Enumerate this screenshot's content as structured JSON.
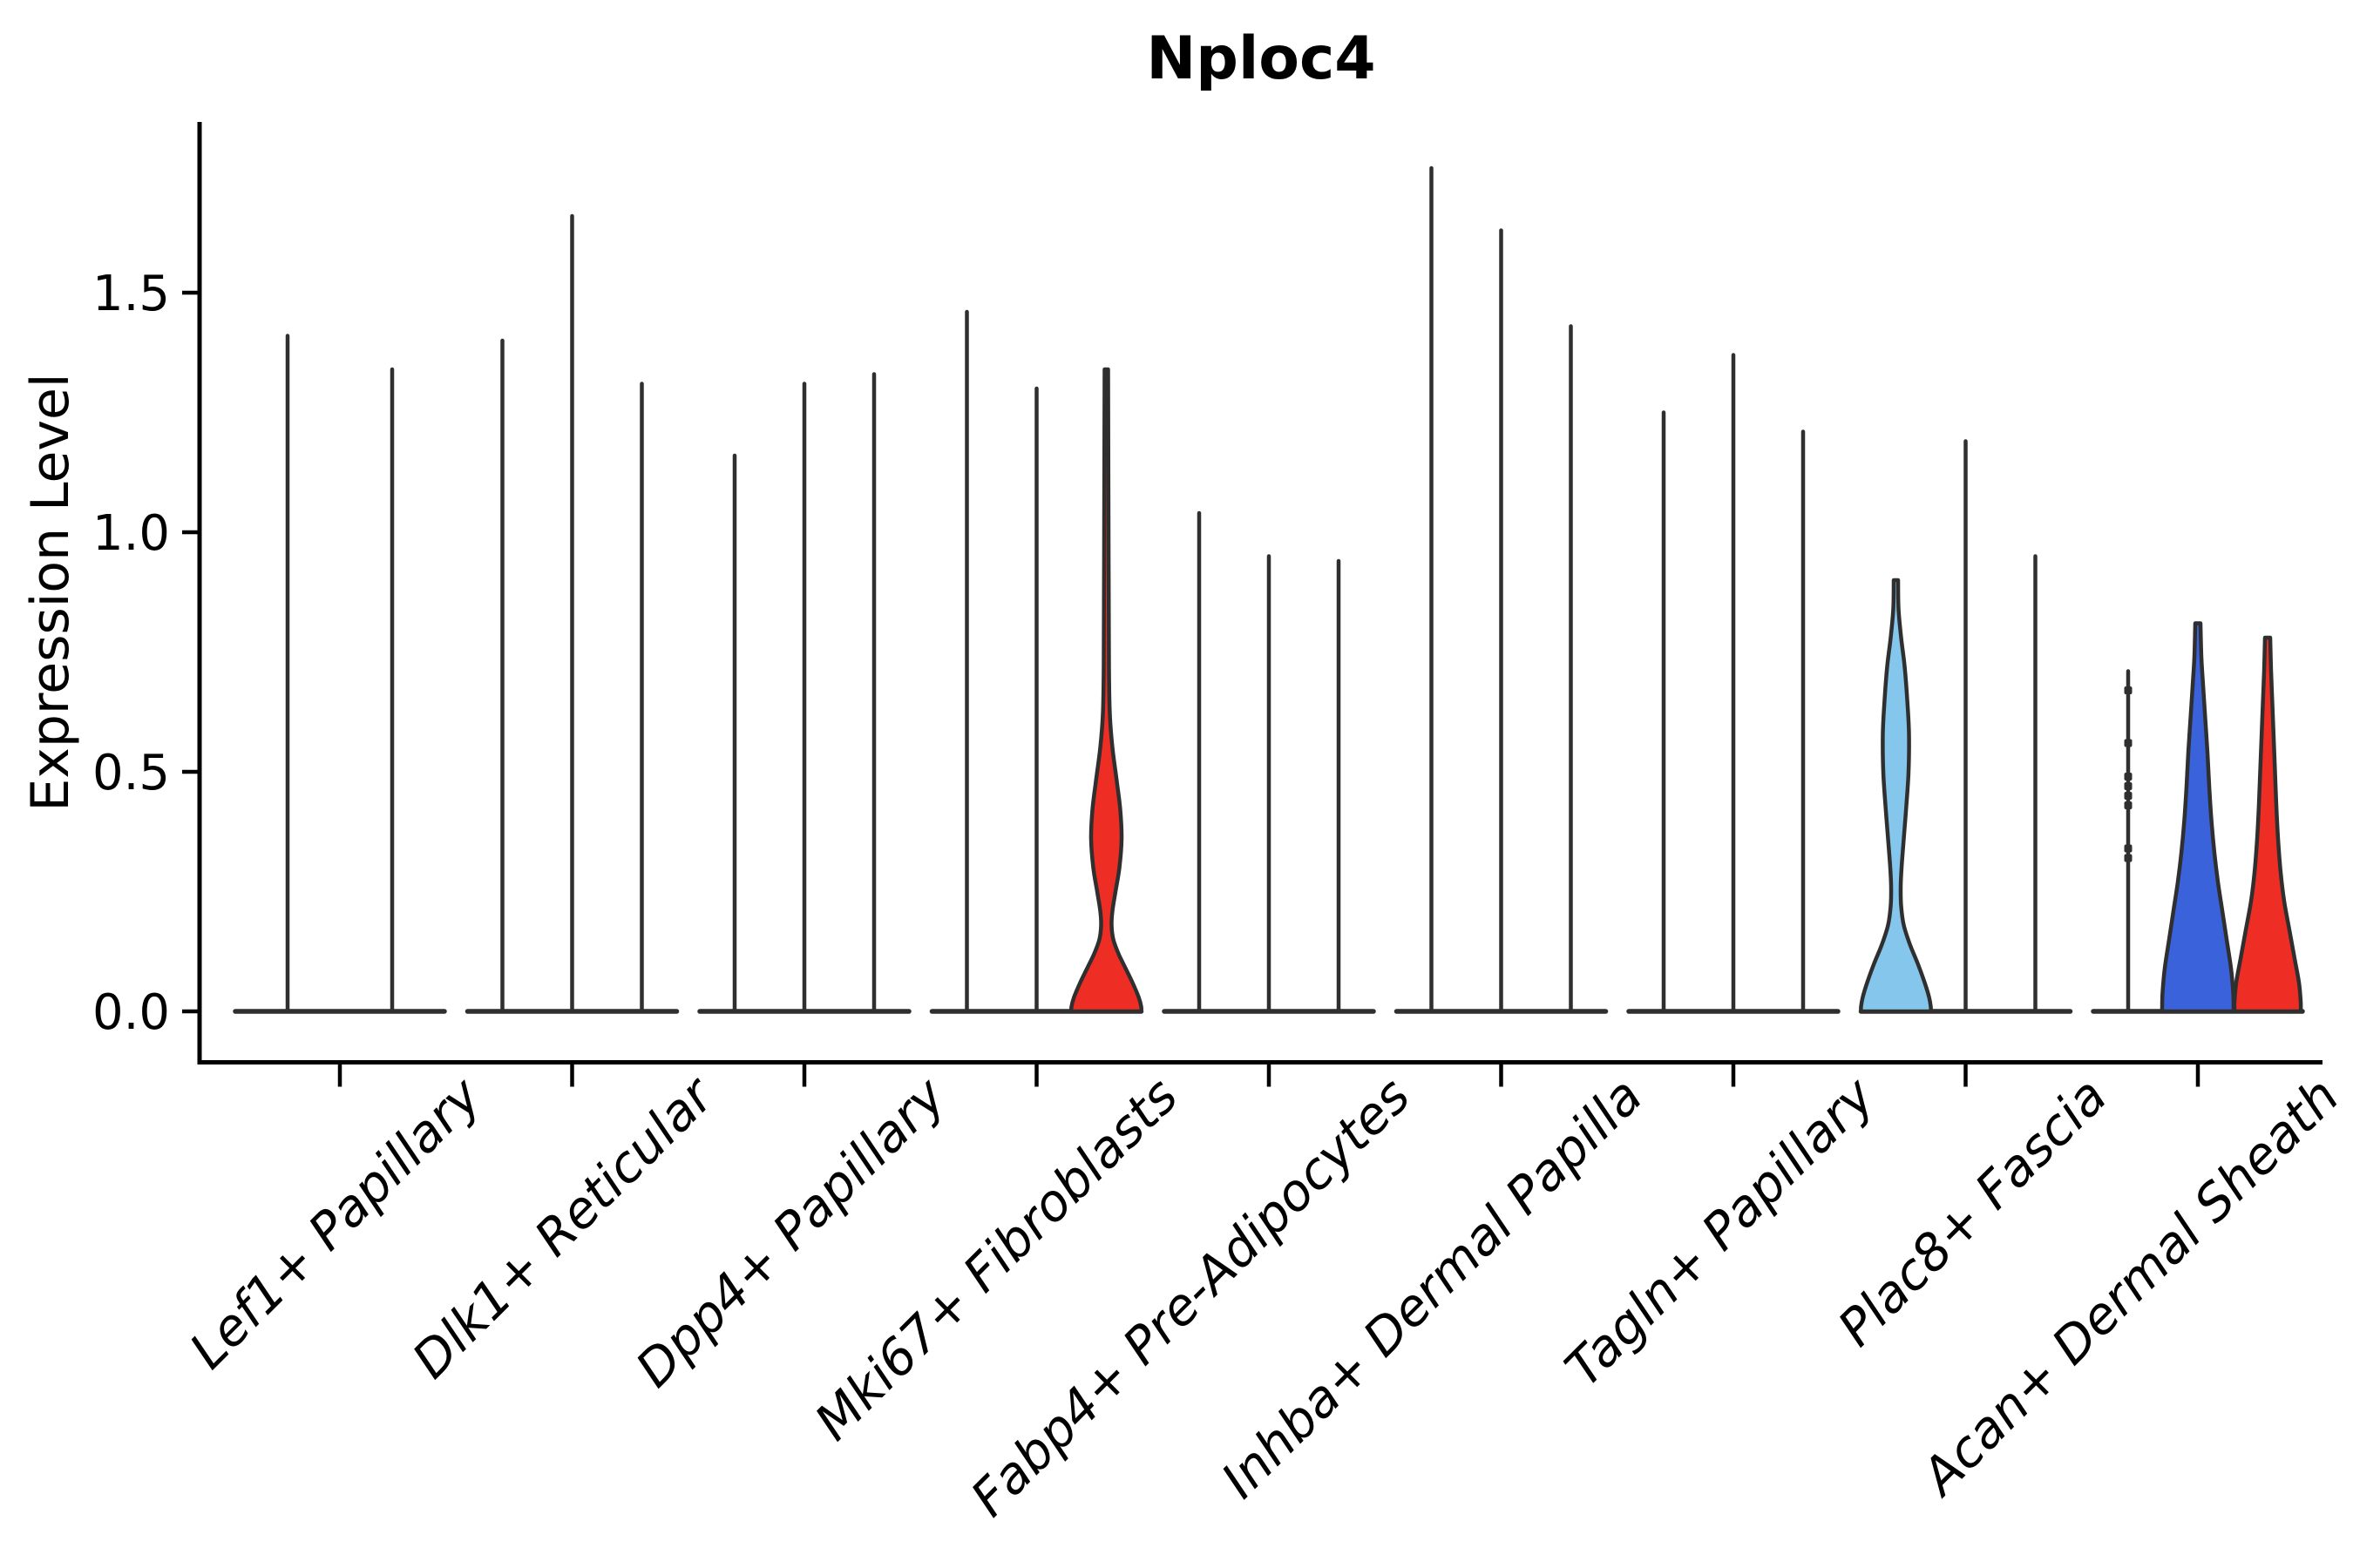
{
  "figure": {
    "title": "Nploc4",
    "ylabel": "Expression Level"
  },
  "colors": {
    "stroke": "#2f2f2f",
    "red": "#ee2e24",
    "blue": "#3a62da",
    "lightblue": "#85c6ec",
    "text": "#000000",
    "background": "#ffffff"
  },
  "chart_data": {
    "type": "violin",
    "title": "Nploc4",
    "xlabel": "",
    "ylabel": "Expression Level",
    "ylim": [
      -0.1,
      1.86
    ],
    "yticks": [
      0.0,
      0.5,
      1.0,
      1.5
    ],
    "ytick_labels": [
      "0.0",
      "0.5",
      "1.0",
      "1.5"
    ],
    "grid": false,
    "legend": "none",
    "x_tick_rotation": 45,
    "categories": [
      "Lef1+ Papillary",
      "Dlk1+ Reticular",
      "Dpp4+ Papillary",
      "Mki67+ Fibroblasts",
      "Fabp4+ Pre-Adipocytes",
      "Inhba+ Dermal Papilla",
      "Tagln+ Papillary",
      "Plac8+ Fascia",
      "Acan+ Dermal Sheath"
    ],
    "groups": [
      {
        "category": "Lef1+ Papillary",
        "violins": [
          {
            "kind": "spike",
            "max": 1.41
          },
          {
            "kind": "spike",
            "max": 1.34
          }
        ]
      },
      {
        "category": "Dlk1+ Reticular",
        "violins": [
          {
            "kind": "spike",
            "max": 1.4
          },
          {
            "kind": "spike",
            "max": 1.66
          },
          {
            "kind": "spike",
            "max": 1.31
          }
        ]
      },
      {
        "category": "Dpp4+ Papillary",
        "violins": [
          {
            "kind": "spike",
            "max": 1.16
          },
          {
            "kind": "spike",
            "max": 1.31
          },
          {
            "kind": "spike",
            "max": 1.33
          }
        ]
      },
      {
        "category": "Mki67+ Fibroblasts",
        "violins": [
          {
            "kind": "spike",
            "max": 1.46
          },
          {
            "kind": "spike",
            "max": 1.3
          },
          {
            "kind": "shaped",
            "max": 1.34,
            "fill": "red",
            "profile": [
              [
                1.34,
                2
              ],
              [
                1.0,
                2.5
              ],
              [
                0.72,
                3
              ],
              [
                0.62,
                4
              ],
              [
                0.55,
                7
              ],
              [
                0.48,
                12
              ],
              [
                0.42,
                16
              ],
              [
                0.36,
                17.5
              ],
              [
                0.3,
                15
              ],
              [
                0.25,
                10.5
              ],
              [
                0.21,
                7
              ],
              [
                0.18,
                6
              ],
              [
                0.15,
                8
              ],
              [
                0.12,
                14
              ],
              [
                0.09,
                22
              ],
              [
                0.06,
                30
              ],
              [
                0.03,
                37
              ],
              [
                0.01,
                40
              ],
              [
                0,
                40
              ]
            ]
          }
        ]
      },
      {
        "category": "Fabp4+ Pre-Adipocytes",
        "violins": [
          {
            "kind": "spike",
            "max": 1.04
          },
          {
            "kind": "spike",
            "max": 0.95
          },
          {
            "kind": "spike",
            "max": 0.94
          }
        ]
      },
      {
        "category": "Inhba+ Dermal Papilla",
        "violins": [
          {
            "kind": "spike",
            "max": 1.76
          },
          {
            "kind": "spike",
            "max": 1.63
          },
          {
            "kind": "spike",
            "max": 1.43
          }
        ]
      },
      {
        "category": "Tagln+ Papillary",
        "violins": [
          {
            "kind": "spike",
            "max": 1.25
          },
          {
            "kind": "spike",
            "max": 1.37
          },
          {
            "kind": "spike",
            "max": 1.21
          }
        ]
      },
      {
        "category": "Plac8+ Fascia",
        "violins": [
          {
            "kind": "shaped",
            "max": 0.9,
            "fill": "lightblue",
            "profile": [
              [
                0.9,
                2.5
              ],
              [
                0.84,
                3
              ],
              [
                0.78,
                6
              ],
              [
                0.72,
                10
              ],
              [
                0.65,
                13
              ],
              [
                0.58,
                15
              ],
              [
                0.5,
                14.5
              ],
              [
                0.43,
                12
              ],
              [
                0.36,
                9
              ],
              [
                0.3,
                6.5
              ],
              [
                0.26,
                5.5
              ],
              [
                0.22,
                6
              ],
              [
                0.18,
                9
              ],
              [
                0.14,
                16
              ],
              [
                0.1,
                25
              ],
              [
                0.06,
                33
              ],
              [
                0.03,
                38
              ],
              [
                0.01,
                40
              ],
              [
                0,
                40
              ]
            ]
          },
          {
            "kind": "spike",
            "max": 1.19
          },
          {
            "kind": "spike",
            "max": 0.95
          }
        ]
      },
      {
        "category": "Acan+ Dermal Sheath",
        "violins": [
          {
            "kind": "spike",
            "max": 0.71,
            "points": [
              0.67,
              0.56,
              0.49,
              0.47,
              0.45,
              0.43,
              0.34,
              0.32
            ]
          },
          {
            "kind": "shaped",
            "max": 0.81,
            "fill": "blue",
            "profile": [
              [
                0.81,
                3
              ],
              [
                0.74,
                4
              ],
              [
                0.68,
                6
              ],
              [
                0.61,
                8.5
              ],
              [
                0.54,
                11
              ],
              [
                0.47,
                13
              ],
              [
                0.4,
                15.5
              ],
              [
                0.33,
                19
              ],
              [
                0.27,
                23
              ],
              [
                0.21,
                28
              ],
              [
                0.15,
                33
              ],
              [
                0.09,
                38
              ],
              [
                0.04,
                40.5
              ],
              [
                0.01,
                41
              ],
              [
                0,
                41
              ]
            ]
          },
          {
            "kind": "shaped",
            "max": 0.78,
            "fill": "red",
            "profile": [
              [
                0.78,
                3
              ],
              [
                0.71,
                4
              ],
              [
                0.64,
                5.5
              ],
              [
                0.57,
                7
              ],
              [
                0.5,
                8.5
              ],
              [
                0.43,
                10
              ],
              [
                0.36,
                12
              ],
              [
                0.29,
                15
              ],
              [
                0.23,
                19
              ],
              [
                0.17,
                25
              ],
              [
                0.11,
                31
              ],
              [
                0.06,
                36
              ],
              [
                0.02,
                38
              ],
              [
                0,
                38
              ]
            ]
          }
        ]
      }
    ]
  }
}
